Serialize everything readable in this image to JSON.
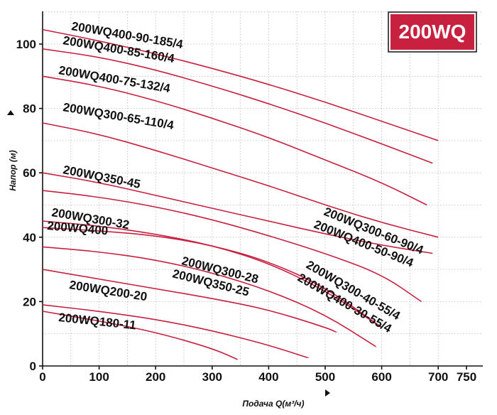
{
  "chart_data": {
    "type": "line",
    "title": "",
    "badge": "200WQ",
    "xlabel": "Подача Q(м³/ч)",
    "ylabel": "Напор (м)",
    "xlim": [
      0,
      750
    ],
    "ylim": [
      0,
      110
    ],
    "x_ticks": [
      0,
      100,
      200,
      300,
      400,
      500,
      600,
      700,
      750
    ],
    "y_ticks": [
      0,
      20,
      40,
      60,
      80,
      100
    ],
    "grid": true,
    "colors": {
      "series": "#c8203f",
      "badge_bg": "#c8203f",
      "axis": "#111111",
      "grid": "#bbbbbb"
    },
    "series": [
      {
        "name": "200WQ400-90-185/4",
        "x": [
          0,
          100,
          200,
          300,
          400,
          500,
          600,
          700
        ],
        "y": [
          104.5,
          101,
          97,
          92.5,
          87.5,
          82,
          76,
          70
        ]
      },
      {
        "name": "200WQ400-85-160/4",
        "x": [
          0,
          100,
          200,
          300,
          400,
          500,
          600,
          690
        ],
        "y": [
          98.5,
          96,
          92,
          87,
          81.5,
          75.5,
          69,
          63
        ]
      },
      {
        "name": "200WQ400-75-132/4",
        "x": [
          0,
          100,
          200,
          300,
          400,
          500,
          600,
          680
        ],
        "y": [
          90,
          87,
          82.5,
          77,
          71,
          64,
          57,
          50
        ]
      },
      {
        "name": "200WQ300-65-110/4",
        "x": [
          0,
          100,
          200,
          300,
          400,
          500,
          600,
          700
        ],
        "y": [
          75.5,
          72,
          67,
          61.5,
          56,
          50,
          44.5,
          40
        ]
      },
      {
        "name": "200WQ300-60-90/4",
        "x": [
          0,
          100,
          200,
          300,
          400,
          500,
          600,
          690
        ],
        "y": [
          60,
          57,
          53,
          49,
          45,
          41,
          37.5,
          35
        ]
      },
      {
        "name": "200WQ400-50-90/4",
        "x": [
          0,
          100,
          200,
          300,
          400,
          500,
          600,
          670
        ],
        "y": [
          54.5,
          52.5,
          49.5,
          45.5,
          40.5,
          35,
          28.5,
          20
        ]
      },
      {
        "name": "200WQ350-45",
        "x": [
          0,
          100,
          200,
          300,
          400,
          500,
          600
        ],
        "y": [
          45,
          43.5,
          41,
          37.5,
          32,
          23.5,
          12
        ]
      },
      {
        "name": "200WQ300-40-55/4",
        "x": [
          0,
          100,
          200,
          300,
          400,
          500,
          600
        ],
        "y": [
          43,
          42,
          40.5,
          37.5,
          32.5,
          24.5,
          12
        ]
      },
      {
        "name": "200WQ400-30-55/4",
        "x": [
          0,
          100,
          200,
          300,
          400,
          500,
          590
        ],
        "y": [
          37,
          35.5,
          33,
          29,
          23.5,
          16,
          6
        ]
      },
      {
        "name": "200WQ300-28",
        "x": [
          0,
          100,
          200,
          300,
          400,
          500,
          520
        ],
        "y": [
          30,
          27,
          24,
          21,
          17.5,
          12,
          10.5
        ]
      },
      {
        "name": "200WQ350-25",
        "x": [
          0,
          100,
          200,
          300,
          400,
          470
        ],
        "y": [
          19,
          17,
          14.5,
          11,
          6.5,
          2.5
        ]
      },
      {
        "name": "200WQ200-20",
        "x": [
          0,
          100,
          200,
          300,
          345
        ],
        "y": [
          17,
          14,
          10.5,
          5.5,
          2
        ]
      },
      {
        "name": "200WQ180-11",
        "x": [],
        "y": []
      },
      {
        "name": "200WQ300-32",
        "x": [],
        "y": []
      },
      {
        "name": "200WQ400",
        "x": [],
        "y": []
      }
    ],
    "labels": [
      {
        "text": "200WQ400-90-185/4",
        "x": 0.5,
        "y": 0.96,
        "angle": 10
      },
      {
        "text": "200WQ400-85-160/4",
        "x": 0.44,
        "y": 0.92,
        "angle": 10
      },
      {
        "text": "200WQ400-75-132/4",
        "x": 0.36,
        "y": 0.84,
        "angle": 10
      },
      {
        "text": "200WQ300-65-110/4",
        "x": 0.42,
        "y": 0.71,
        "angle": 10
      },
      {
        "text": "200WQ350-45",
        "x": 0.45,
        "y": 0.59,
        "angle": 10
      },
      {
        "text": "200WQ300-32",
        "x": 0.14,
        "y": 0.43,
        "angle": 10
      },
      {
        "text": "200WQ400",
        "x": 0.08,
        "y": 0.39,
        "angle": 8
      },
      {
        "text": "200WQ300-28",
        "x": 0.28,
        "y": 0.32,
        "angle": 14
      },
      {
        "text": "200WQ350-25",
        "x": 0.24,
        "y": 0.28,
        "angle": 14
      },
      {
        "text": "200WQ200-20",
        "x": 0.5,
        "y": 0.22,
        "angle": 14
      },
      {
        "text": "200WQ180-11",
        "x": 0.28,
        "y": 0.12,
        "angle": 8
      },
      {
        "text": "200WQ300-60-90/4",
        "x": 0.52,
        "y": 0.54,
        "angle": 22
      },
      {
        "text": "200WQ400-50-90/4",
        "x": 0.5,
        "y": 0.5,
        "angle": 22
      },
      {
        "text": "200WQ300-40-55/4",
        "x": 0.5,
        "y": 0.36,
        "angle": 30
      },
      {
        "text": "200WQ400-30-55/4",
        "x": 0.48,
        "y": 0.32,
        "angle": 30
      }
    ]
  }
}
